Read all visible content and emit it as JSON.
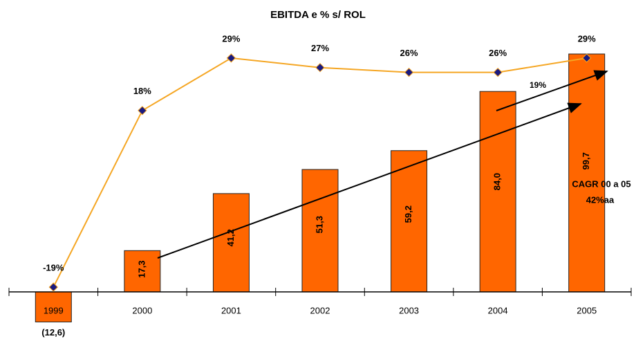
{
  "chart_data": {
    "type": "bar",
    "title": "EBITDA e % s/ ROL",
    "categories": [
      "1999",
      "2000",
      "2001",
      "2002",
      "2003",
      "2004",
      "2005"
    ],
    "series": [
      {
        "name": "EBITDA",
        "type": "bar",
        "color": "#ff6600",
        "values": [
          -12.6,
          17.3,
          41.2,
          51.3,
          59.2,
          84.0,
          99.7
        ],
        "value_labels": [
          "(12,6)",
          "17,3",
          "41,2",
          "51,3",
          "59,2",
          "84,0",
          "99,7"
        ]
      },
      {
        "name": "% s/ ROL",
        "type": "line",
        "axis": "y2",
        "color": "#f5a623",
        "marker_color": "#1a1a80",
        "values": [
          -19,
          18,
          29,
          27,
          26,
          26,
          29
        ],
        "value_labels": [
          "-19%",
          "18%",
          "29%",
          "27%",
          "26%",
          "26%",
          "29%"
        ]
      }
    ],
    "annotations": [
      "19%",
      "CAGR 00 a 05",
      "42%aa"
    ],
    "ylim": [
      -20,
      110
    ],
    "y2lim": [
      -30,
      35
    ],
    "grid": false
  }
}
